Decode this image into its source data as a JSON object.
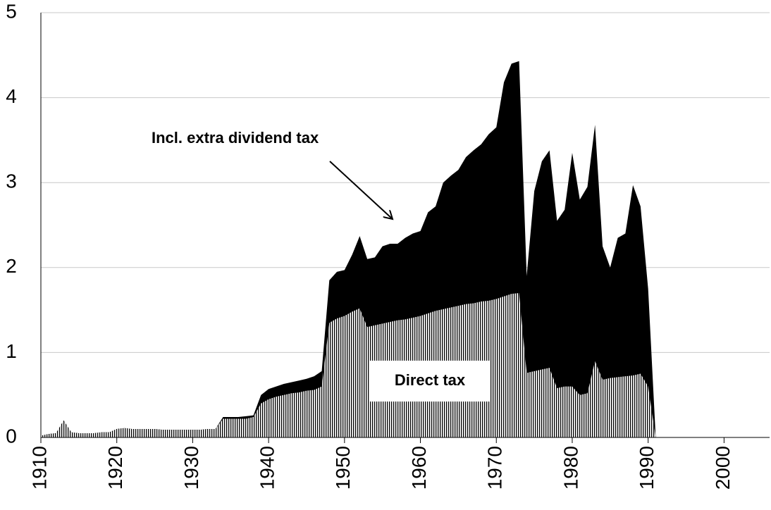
{
  "chart_data": {
    "type": "area",
    "overlap": true,
    "x": [
      1910,
      1911,
      1912,
      1913,
      1914,
      1915,
      1916,
      1917,
      1918,
      1919,
      1920,
      1921,
      1922,
      1923,
      1924,
      1925,
      1926,
      1927,
      1928,
      1929,
      1930,
      1931,
      1932,
      1933,
      1934,
      1935,
      1936,
      1937,
      1938,
      1939,
      1940,
      1941,
      1942,
      1943,
      1944,
      1945,
      1946,
      1947,
      1948,
      1949,
      1950,
      1951,
      1952,
      1953,
      1954,
      1955,
      1956,
      1957,
      1958,
      1959,
      1960,
      1961,
      1962,
      1963,
      1964,
      1965,
      1966,
      1967,
      1968,
      1969,
      1970,
      1971,
      1972,
      1973,
      1974,
      1975,
      1976,
      1977,
      1978,
      1979,
      1980,
      1981,
      1982,
      1983,
      1984,
      1985,
      1986,
      1987,
      1988,
      1989,
      1990,
      1991
    ],
    "series": [
      {
        "name": "Direct tax",
        "color": "#000000",
        "pattern": "vertical-stripes",
        "values": [
          0.02,
          0.04,
          0.05,
          0.2,
          0.06,
          0.05,
          0.05,
          0.05,
          0.06,
          0.06,
          0.1,
          0.11,
          0.1,
          0.1,
          0.1,
          0.1,
          0.09,
          0.09,
          0.09,
          0.09,
          0.09,
          0.09,
          0.1,
          0.1,
          0.22,
          0.22,
          0.22,
          0.22,
          0.24,
          0.4,
          0.45,
          0.48,
          0.5,
          0.52,
          0.53,
          0.55,
          0.56,
          0.6,
          1.35,
          1.4,
          1.43,
          1.48,
          1.52,
          1.3,
          1.32,
          1.34,
          1.36,
          1.38,
          1.39,
          1.41,
          1.43,
          1.46,
          1.49,
          1.51,
          1.53,
          1.55,
          1.57,
          1.58,
          1.6,
          1.61,
          1.63,
          1.66,
          1.69,
          1.7,
          0.76,
          0.78,
          0.8,
          0.82,
          0.58,
          0.6,
          0.6,
          0.5,
          0.52,
          0.9,
          0.68,
          0.7,
          0.71,
          0.72,
          0.73,
          0.75,
          0.6,
          0
        ]
      },
      {
        "name": "Incl. extra dividend tax",
        "color": "#000000",
        "values": [
          0.02,
          0.04,
          0.05,
          0.2,
          0.06,
          0.05,
          0.05,
          0.05,
          0.06,
          0.06,
          0.1,
          0.11,
          0.1,
          0.1,
          0.1,
          0.1,
          0.09,
          0.09,
          0.09,
          0.09,
          0.09,
          0.09,
          0.1,
          0.1,
          0.24,
          0.24,
          0.24,
          0.25,
          0.26,
          0.5,
          0.57,
          0.6,
          0.63,
          0.65,
          0.67,
          0.69,
          0.72,
          0.78,
          1.85,
          1.95,
          1.97,
          2.15,
          2.37,
          2.1,
          2.12,
          2.25,
          2.28,
          2.28,
          2.35,
          2.4,
          2.43,
          2.65,
          2.72,
          3.0,
          3.08,
          3.15,
          3.3,
          3.38,
          3.45,
          3.57,
          3.65,
          4.18,
          4.4,
          4.43,
          1.9,
          2.9,
          3.25,
          3.38,
          2.55,
          2.68,
          3.35,
          2.8,
          2.95,
          3.68,
          2.25,
          2.0,
          2.35,
          2.4,
          2.97,
          2.72,
          1.75,
          0
        ]
      }
    ],
    "xlim": [
      1910,
      2006
    ],
    "xticks": [
      1910,
      1920,
      1930,
      1940,
      1950,
      1960,
      1970,
      1980,
      1990,
      2000
    ],
    "ylim": [
      0,
      5
    ],
    "yticks": [
      0,
      1,
      2,
      3,
      4,
      5
    ],
    "grid": true
  }
}
